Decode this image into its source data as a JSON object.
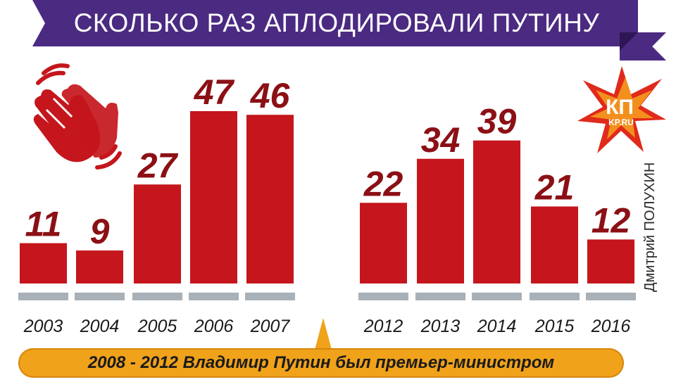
{
  "title": "СКОЛЬКО РАЗ АПЛОДИРОВАЛИ ПУТИНУ",
  "author": "Дмитрий ПОЛУХИН",
  "note": "2008 - 2012 Владимир Путин был премьер-министром",
  "logo": {
    "main": "КП",
    "sub": "KP.RU"
  },
  "colors": {
    "bar": "#c4161c",
    "label": "#8b1015",
    "base": "#a8b0b8",
    "banner": "#4b2a82",
    "note": "#f0a21b"
  },
  "icons": {
    "clap": "clapping-hands-icon",
    "logo": "kp-star-logo"
  },
  "chart_data": {
    "type": "bar",
    "categories": [
      "2003",
      "2004",
      "2005",
      "2006",
      "2007",
      "2012",
      "2013",
      "2014",
      "2015",
      "2016"
    ],
    "values": [
      11,
      9,
      27,
      47,
      46,
      22,
      34,
      39,
      21,
      12
    ],
    "title": "СКОЛЬКО РАЗ АПЛОДИРОВАЛИ ПУТИНУ",
    "ylim": [
      0,
      47
    ],
    "grid": false,
    "legend": "none"
  }
}
